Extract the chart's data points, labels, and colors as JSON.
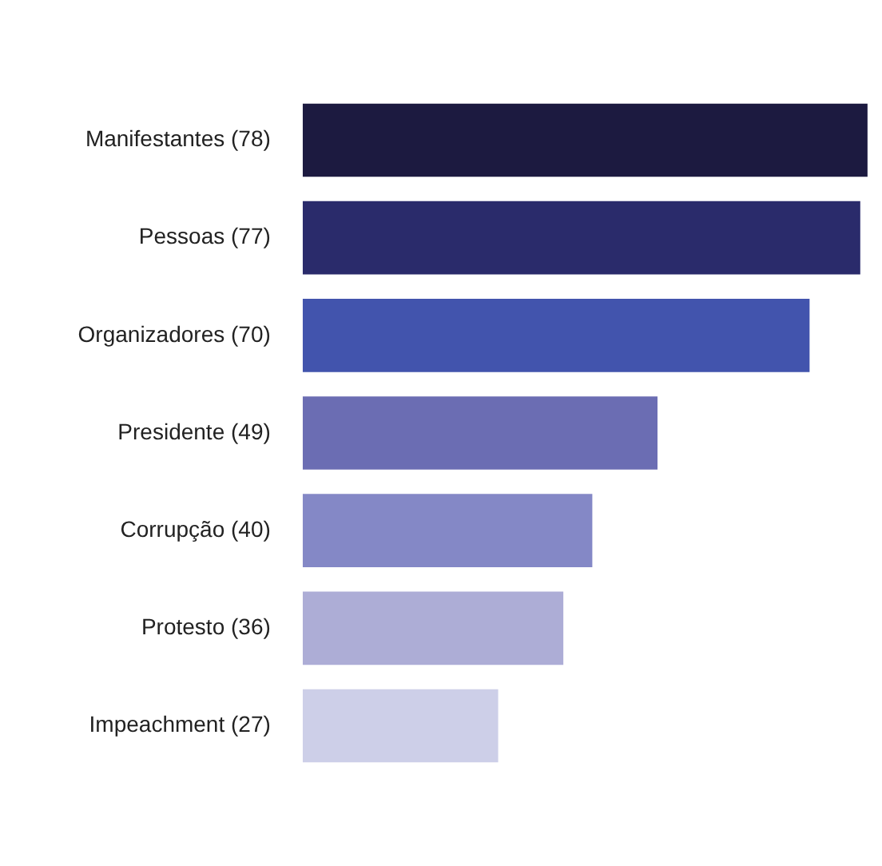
{
  "chart_data": {
    "type": "bar",
    "orientation": "horizontal",
    "categories": [
      "Manifestantes",
      "Pessoas",
      "Organizadores",
      "Presidente",
      "Corrupção",
      "Protesto",
      "Impeachment"
    ],
    "values": [
      78,
      77,
      70,
      49,
      40,
      36,
      27
    ],
    "value_labels": [
      "(78)",
      "(77)",
      "(70)",
      "(49)",
      "(40)",
      "(36)",
      "(27)"
    ],
    "colors": [
      "#1c1a40",
      "#2a2b6b",
      "#4254ad",
      "#6b6db3",
      "#8488c6",
      "#adadd6",
      "#cdcfe8"
    ],
    "legend": false,
    "tick_labels": "y"
  }
}
